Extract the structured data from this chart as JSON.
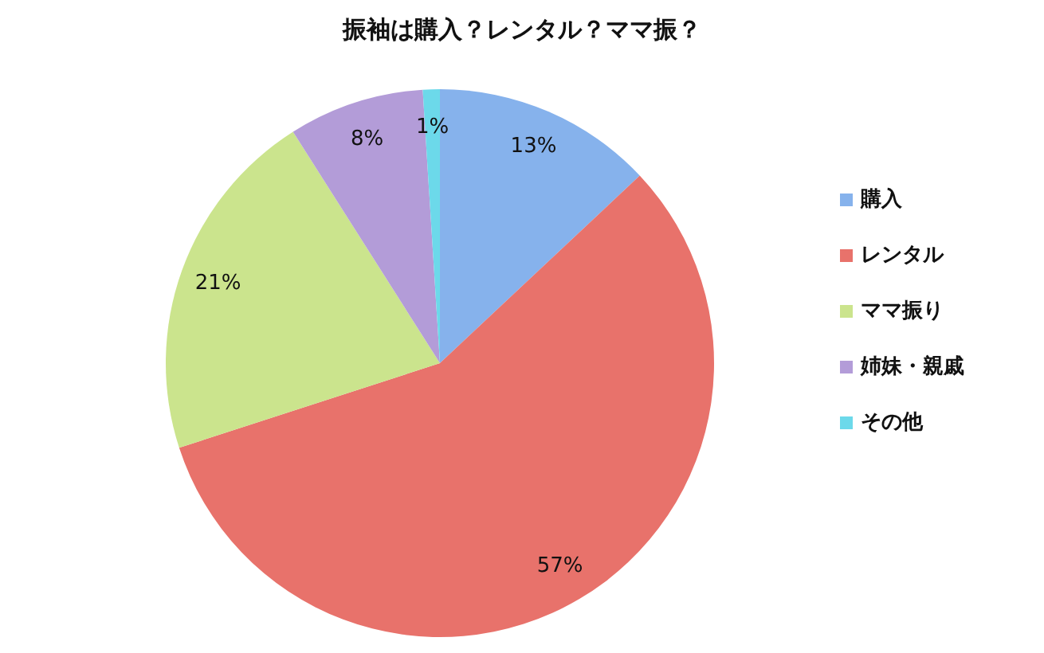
{
  "chart_data": {
    "type": "pie",
    "title": "振袖は購入？レンタル？ママ振？",
    "categories": [
      "購入",
      "レンタル",
      "ママ振り",
      "姉妹・親戚",
      "その他"
    ],
    "values": [
      13,
      57,
      21,
      8,
      1
    ],
    "value_labels": [
      "13%",
      "57%",
      "21%",
      "8%",
      "1%"
    ],
    "colors": [
      "#86b2ec",
      "#e8726b",
      "#cbe48d",
      "#b39cd8",
      "#6cd9ea"
    ],
    "legend": "right"
  }
}
